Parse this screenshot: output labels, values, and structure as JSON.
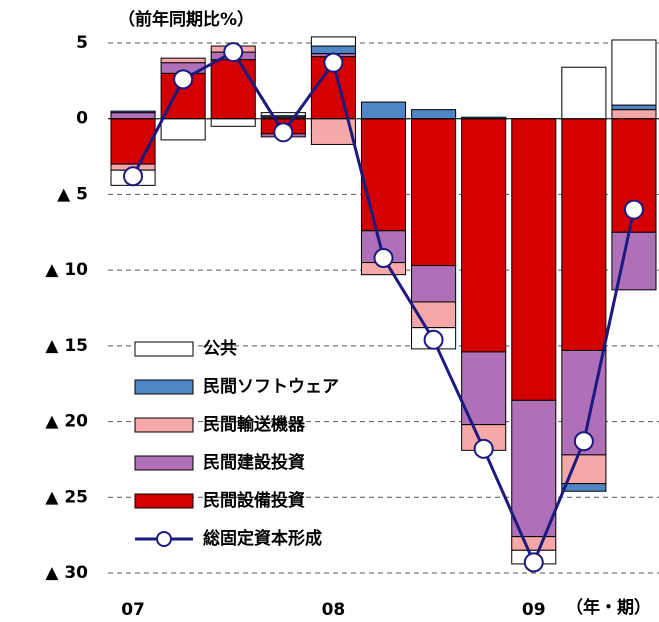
{
  "chart_data": {
    "type": "bar",
    "y_label": "（前年同期比%）",
    "x_label": "（年・期）",
    "categories": [
      "07",
      null,
      null,
      null,
      "08",
      null,
      null,
      null,
      "09",
      null,
      null
    ],
    "ylim": [
      -30,
      5
    ],
    "yticks": [
      5,
      0,
      {
        "value": -5,
        "label": "▲ 5"
      },
      {
        "value": -10,
        "label": "▲ 10"
      },
      {
        "value": -15,
        "label": "▲ 15"
      },
      {
        "value": -20,
        "label": "▲ 20"
      },
      {
        "value": -25,
        "label": "▲ 25"
      },
      {
        "value": -30,
        "label": "▲ 30"
      }
    ],
    "grid": true,
    "series": [
      {
        "name": "民間設備投資",
        "color": "#d40000",
        "values": [
          -3.0,
          3.0,
          3.9,
          -1.0,
          4.1,
          -7.4,
          -9.7,
          -15.4,
          -18.6,
          -15.3,
          -7.5
        ]
      },
      {
        "name": "民間建設投資",
        "color": "#b070b8",
        "values": [
          0.4,
          0.7,
          0.5,
          -0.2,
          0.2,
          -2.1,
          -2.4,
          -4.8,
          -9.0,
          -6.9,
          -3.8
        ]
      },
      {
        "name": "民間輸送機器",
        "color": "#f6a8a8",
        "values": [
          -0.4,
          0.3,
          0.4,
          0.1,
          -1.7,
          -0.8,
          -1.7,
          -1.7,
          -0.9,
          -1.9,
          0.6
        ]
      },
      {
        "name": "民間ソフトウェア",
        "color": "#4f86c6",
        "values": [
          0.1,
          0,
          0,
          0.1,
          0.5,
          1.1,
          0.6,
          0.1,
          0,
          -0.5,
          0.3
        ]
      },
      {
        "name": "公共",
        "color": "#ffffff",
        "values": [
          -1.0,
          -1.4,
          -0.5,
          0.2,
          0.6,
          0,
          -1.4,
          0,
          -0.9,
          3.4,
          4.3
        ]
      }
    ],
    "line": {
      "name": "総固定資本形成",
      "color": "#1a1a80",
      "values": [
        -3.8,
        2.6,
        4.4,
        -0.9,
        3.7,
        -9.2,
        -14.6,
        -21.8,
        -29.3,
        -21.3,
        -6.0
      ]
    }
  }
}
